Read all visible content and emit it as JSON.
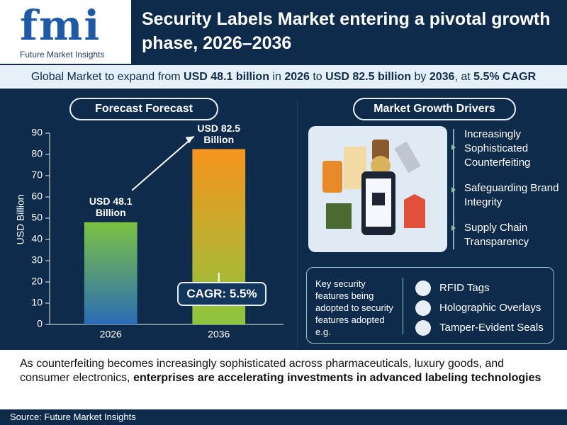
{
  "logo": {
    "mark": "fmi",
    "name": "Future Market Insights"
  },
  "header": {
    "title": "Security Labels Market entering a pivotal growth phase, 2026–2036"
  },
  "subheadline": {
    "segments": [
      "Global Market to expand from ",
      "USD 48.1 billion",
      " in ",
      "2026",
      " to ",
      "USD 82.5 billion",
      " by ",
      "2036",
      ", at ",
      "5.5% CAGR"
    ]
  },
  "chart_data": {
    "type": "bar",
    "title": "Forecast Forecast",
    "y_label": "USD Billion",
    "categories": [
      "2026",
      "2036"
    ],
    "values": [
      48.1,
      82.5
    ],
    "value_labels": [
      "USD 48.1 Billion",
      "USD 82.5 Billion"
    ],
    "colors": [
      [
        "#7cc242",
        "#2a6cb5"
      ],
      [
        "#f7941d",
        "#8dc63f"
      ]
    ],
    "ylim": [
      0,
      90
    ],
    "yticks": [
      0,
      10,
      20,
      30,
      40,
      50,
      60,
      70,
      80,
      90
    ],
    "annotation": "CAGR: 5.5%"
  },
  "drivers": {
    "title": "Market Growth Drivers",
    "items": [
      "Increasingly Sophisticated Counterfeiting",
      "Safeguarding Brand Integrity",
      "Supply Chain Transparency"
    ]
  },
  "features": {
    "intro": "Key security features being adopted to security features adopted e.g.",
    "items": [
      "RFID Tags",
      "Holographic Overlays",
      "Tamper-Evident Seals"
    ]
  },
  "footer": {
    "segments": [
      "As counterfeiting becomes increasingly sophisticated across pharmaceuticals, luxury goods, and consumer electronics, ",
      "enterprises are accelerating investments in advanced labeling technologies"
    ]
  },
  "source": "Source: Future Market Insights"
}
